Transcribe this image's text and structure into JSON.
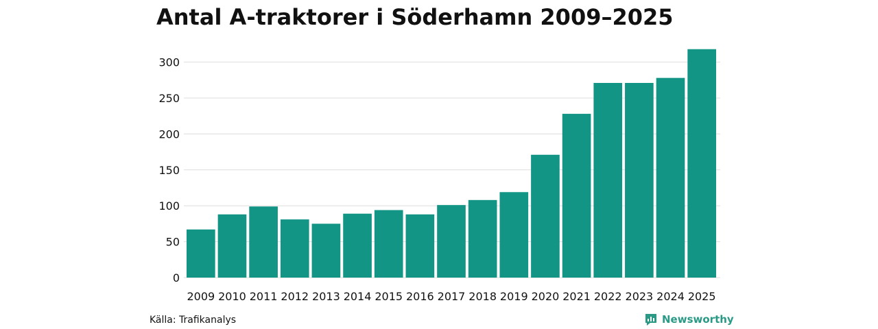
{
  "chart_data": {
    "type": "bar",
    "title": "Antal A-traktorer i Söderhamn 2009–2025",
    "categories": [
      "2009",
      "2010",
      "2011",
      "2012",
      "2013",
      "2014",
      "2015",
      "2016",
      "2017",
      "2018",
      "2019",
      "2020",
      "2021",
      "2022",
      "2023",
      "2024",
      "2025"
    ],
    "values": [
      67,
      88,
      99,
      81,
      75,
      89,
      94,
      88,
      101,
      108,
      119,
      171,
      228,
      271,
      271,
      278,
      318
    ],
    "xlabel": "",
    "ylabel": "",
    "ylim": [
      0,
      325
    ],
    "yticks": [
      "0",
      "50",
      "100",
      "150",
      "200",
      "250",
      "300"
    ],
    "grid": true,
    "bar_color": "#139586"
  },
  "footer": {
    "source": "Källa: Trafikanalys",
    "brand": "Newsworthy",
    "brand_icon": "newsworthy-logo-icon",
    "brand_color": "#2a9a86"
  }
}
